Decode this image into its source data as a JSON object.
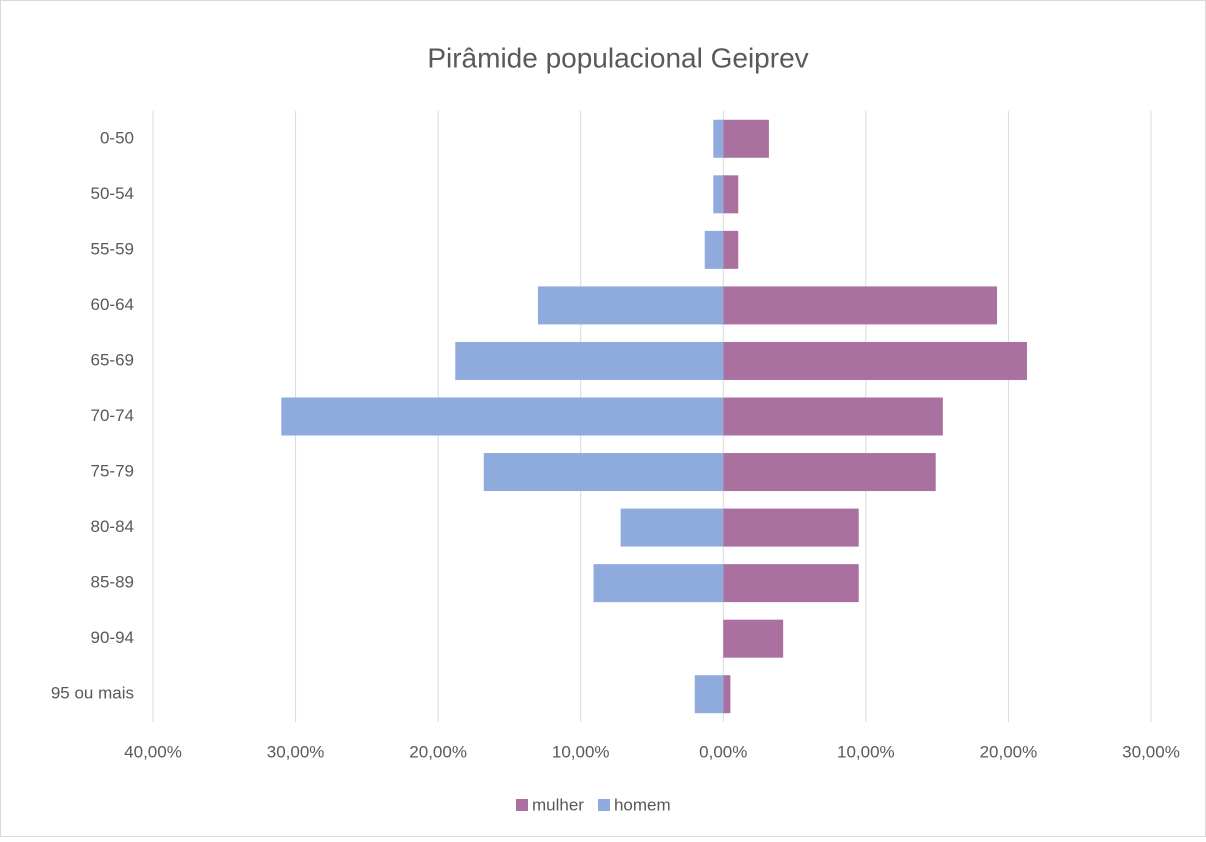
{
  "chart_data": {
    "type": "bar",
    "orientation": "horizontal",
    "title": "Pirâmide populacional Geiprev",
    "categories": [
      "0-50",
      "50-54",
      "55-59",
      "60-64",
      "65-69",
      "70-74",
      "75-79",
      "80-84",
      "85-89",
      "90-94",
      "95 ou mais"
    ],
    "series": [
      {
        "name": "mulher",
        "color": "#a970a0",
        "values": [
          3.2,
          1.05,
          1.05,
          19.2,
          21.3,
          15.4,
          14.9,
          9.5,
          9.5,
          4.2,
          0.5
        ]
      },
      {
        "name": "homem",
        "color": "#8faadc",
        "values": [
          -0.7,
          -0.7,
          -1.3,
          -13.0,
          -18.8,
          -31.0,
          -16.8,
          -7.2,
          -9.1,
          0,
          -2.0
        ]
      }
    ],
    "xlim": [
      -40,
      30
    ],
    "xticks": [
      {
        "value": -40,
        "label": "40,00%"
      },
      {
        "value": -30,
        "label": "30,00%"
      },
      {
        "value": -20,
        "label": "20,00%"
      },
      {
        "value": -10,
        "label": "10,00%"
      },
      {
        "value": 0,
        "label": "0,00%"
      },
      {
        "value": 10,
        "label": "10,00%"
      },
      {
        "value": 20,
        "label": "20,00%"
      },
      {
        "value": 30,
        "label": "30,00%"
      }
    ],
    "grid": true,
    "legend": "bottom"
  }
}
